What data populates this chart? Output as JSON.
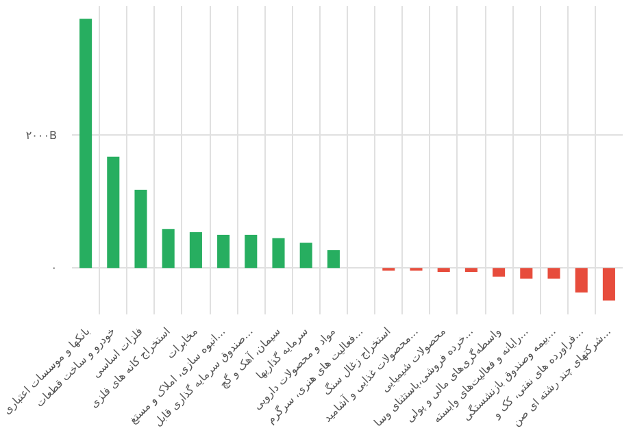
{
  "chart_data": {
    "type": "bar",
    "categories": [
      "بانکها و موسسات اعتباری",
      "خودرو و ساخت قطعات",
      "فلزات اساسی",
      "استخراج کانه های فلزی",
      "مخابرات",
      "انبوه سازی، املاک و مستغ...",
      "صندوق سرمایه گذاری قابل...",
      "سیمان، آهک و گچ",
      "سرمایه گذاریها",
      "مواد و محصولات دارویی",
      "فعالیت های هنری، سرگرم...",
      "استخراج زغال سنگ",
      "محصولات غذایی و آشامید...",
      "محصولات شیمیایی",
      "خرده فروشی،باستثنای وسا...",
      "واسطه‌گری‌های مالی و پولی",
      "رایانه و فعالیت‌های وابسته...",
      "بیمه وصندوق بازنشستگی...",
      "فراورده های نفتی، کک و...",
      "شرکتهای چند رشته ای صن..."
    ],
    "values": [
      3760,
      1680,
      1180,
      590,
      540,
      500,
      500,
      450,
      380,
      270,
      0,
      -40,
      -40,
      -60,
      -60,
      -130,
      -160,
      -160,
      -370,
      -490
    ],
    "colors": [
      "#27ae60",
      "#27ae60",
      "#27ae60",
      "#27ae60",
      "#27ae60",
      "#27ae60",
      "#27ae60",
      "#27ae60",
      "#27ae60",
      "#27ae60",
      "#27ae60",
      "#e74c3c",
      "#e74c3c",
      "#e74c3c",
      "#e74c3c",
      "#e74c3c",
      "#e74c3c",
      "#e74c3c",
      "#e74c3c",
      "#e74c3c"
    ],
    "ylim": [
      -700,
      3950
    ],
    "yticks": [
      {
        "value": 0,
        "label": "۰"
      },
      {
        "value": 2000,
        "label": "۲۰۰۰B"
      }
    ],
    "grid": true
  }
}
